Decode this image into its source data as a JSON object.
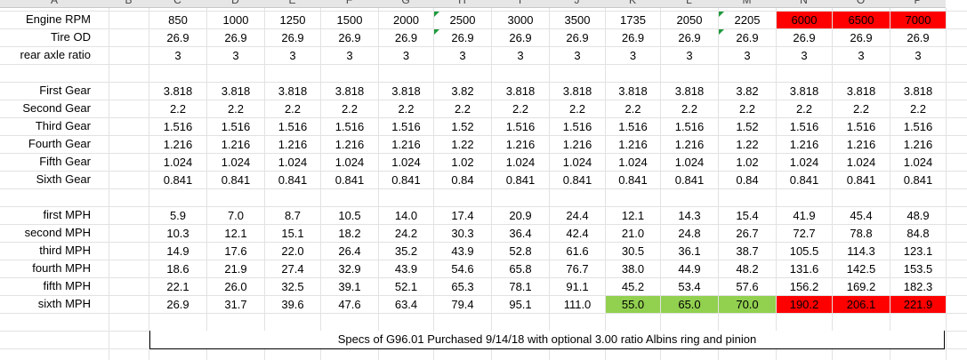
{
  "columns": [
    "A",
    "B",
    "C",
    "D",
    "E",
    "F",
    "G",
    "H",
    "I",
    "J",
    "K",
    "L",
    "M",
    "N",
    "O",
    "P"
  ],
  "rows": [
    {
      "label": "Engine RPM",
      "values": [
        "850",
        "1000",
        "1250",
        "1500",
        "2000",
        "2500",
        "3000",
        "3500",
        "1735",
        "2050",
        "2205",
        "6000",
        "6500",
        "7000"
      ]
    },
    {
      "label": "Tire OD",
      "values": [
        "26.9",
        "26.9",
        "26.9",
        "26.9",
        "26.9",
        "26.9",
        "26.9",
        "26.9",
        "26.9",
        "26.9",
        "26.9",
        "26.9",
        "26.9",
        "26.9"
      ]
    },
    {
      "label": "rear axle ratio",
      "values": [
        "3",
        "3",
        "3",
        "3",
        "3",
        "3",
        "3",
        "3",
        "3",
        "3",
        "3",
        "3",
        "3",
        "3"
      ]
    },
    {
      "label": "",
      "values": []
    },
    {
      "label": "First Gear",
      "values": [
        "3.818",
        "3.818",
        "3.818",
        "3.818",
        "3.818",
        "3.82",
        "3.818",
        "3.818",
        "3.818",
        "3.818",
        "3.82",
        "3.818",
        "3.818",
        "3.818"
      ]
    },
    {
      "label": "Second Gear",
      "values": [
        "2.2",
        "2.2",
        "2.2",
        "2.2",
        "2.2",
        "2.2",
        "2.2",
        "2.2",
        "2.2",
        "2.2",
        "2.2",
        "2.2",
        "2.2",
        "2.2"
      ]
    },
    {
      "label": "Third Gear",
      "values": [
        "1.516",
        "1.516",
        "1.516",
        "1.516",
        "1.516",
        "1.52",
        "1.516",
        "1.516",
        "1.516",
        "1.516",
        "1.52",
        "1.516",
        "1.516",
        "1.516"
      ]
    },
    {
      "label": "Fourth Gear",
      "values": [
        "1.216",
        "1.216",
        "1.216",
        "1.216",
        "1.216",
        "1.22",
        "1.216",
        "1.216",
        "1.216",
        "1.216",
        "1.22",
        "1.216",
        "1.216",
        "1.216"
      ]
    },
    {
      "label": "Fifth Gear",
      "values": [
        "1.024",
        "1.024",
        "1.024",
        "1.024",
        "1.024",
        "1.02",
        "1.024",
        "1.024",
        "1.024",
        "1.024",
        "1.02",
        "1.024",
        "1.024",
        "1.024"
      ]
    },
    {
      "label": "Sixth Gear",
      "values": [
        "0.841",
        "0.841",
        "0.841",
        "0.841",
        "0.841",
        "0.84",
        "0.841",
        "0.841",
        "0.841",
        "0.841",
        "0.84",
        "0.841",
        "0.841",
        "0.841"
      ]
    },
    {
      "label": "",
      "values": []
    },
    {
      "label": "first MPH",
      "values": [
        "5.9",
        "7.0",
        "8.7",
        "10.5",
        "14.0",
        "17.4",
        "20.9",
        "24.4",
        "12.1",
        "14.3",
        "15.4",
        "41.9",
        "45.4",
        "48.9"
      ]
    },
    {
      "label": "second MPH",
      "values": [
        "10.3",
        "12.1",
        "15.1",
        "18.2",
        "24.2",
        "30.3",
        "36.4",
        "42.4",
        "21.0",
        "24.8",
        "26.7",
        "72.7",
        "78.8",
        "84.8"
      ]
    },
    {
      "label": "third MPH",
      "values": [
        "14.9",
        "17.6",
        "22.0",
        "26.4",
        "35.2",
        "43.9",
        "52.8",
        "61.6",
        "30.5",
        "36.1",
        "38.7",
        "105.5",
        "114.3",
        "123.1"
      ]
    },
    {
      "label": "fourth MPH",
      "values": [
        "18.6",
        "21.9",
        "27.4",
        "32.9",
        "43.9",
        "54.6",
        "65.8",
        "76.7",
        "38.0",
        "44.9",
        "48.2",
        "131.6",
        "142.5",
        "153.5"
      ]
    },
    {
      "label": "fifth MPH",
      "values": [
        "22.1",
        "26.0",
        "32.5",
        "39.1",
        "52.1",
        "65.3",
        "78.1",
        "91.1",
        "45.2",
        "53.4",
        "57.6",
        "156.2",
        "169.2",
        "182.3"
      ]
    },
    {
      "label": "sixth MPH",
      "values": [
        "26.9",
        "31.7",
        "39.6",
        "47.6",
        "63.4",
        "79.4",
        "95.1",
        "111.0",
        "55.0",
        "65.0",
        "70.0",
        "190.2",
        "206.1",
        "221.9"
      ]
    }
  ],
  "highlights": {
    "red_color": "#ff0000",
    "green_color": "#92d050",
    "red_cells": [
      [
        0,
        11
      ],
      [
        0,
        12
      ],
      [
        0,
        13
      ],
      [
        16,
        11
      ],
      [
        16,
        12
      ],
      [
        16,
        13
      ]
    ],
    "green_cells": [
      [
        16,
        8
      ],
      [
        16,
        9
      ],
      [
        16,
        10
      ]
    ]
  },
  "note": "Specs of G96.01 Purchased 9/14/18 with optional 3.00 ratio Albins ring and pinion"
}
